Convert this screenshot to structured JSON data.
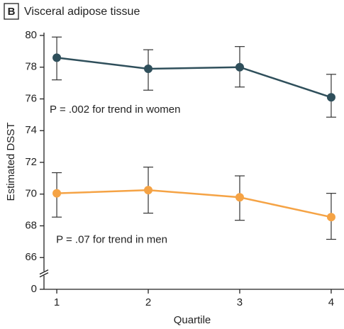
{
  "chart_data": {
    "type": "line",
    "panel_label": "B",
    "title": "Visceral adipose tissue",
    "x_label": "Quartile",
    "y_label": "Estimated DSST",
    "x": [
      1,
      2,
      3,
      4
    ],
    "xlim": [
      0.86,
      4.14
    ],
    "xticks": [
      1,
      2,
      3,
      4
    ],
    "ylim": [
      0,
      80
    ],
    "yticks": [
      0,
      66,
      68,
      70,
      72,
      74,
      76,
      78,
      80
    ],
    "axis_break": true,
    "series": [
      {
        "name": "Women",
        "color": "#2f4f5b",
        "values": [
          78.6,
          77.9,
          78.0,
          76.1
        ],
        "lower": [
          77.2,
          76.55,
          76.75,
          74.85
        ],
        "upper": [
          79.9,
          79.1,
          79.3,
          77.55
        ]
      },
      {
        "name": "Men",
        "color": "#f5a345",
        "values": [
          70.05,
          70.25,
          69.8,
          68.55
        ],
        "lower": [
          68.55,
          68.8,
          68.35,
          67.15
        ],
        "upper": [
          71.35,
          71.7,
          71.15,
          70.05
        ]
      }
    ],
    "annotations": [
      {
        "text": "P = .002 for trend in women",
        "x": 1,
        "y": 75.3
      },
      {
        "text": "P = .07 for trend in men",
        "x": 1.07,
        "y": 67.1
      }
    ]
  }
}
